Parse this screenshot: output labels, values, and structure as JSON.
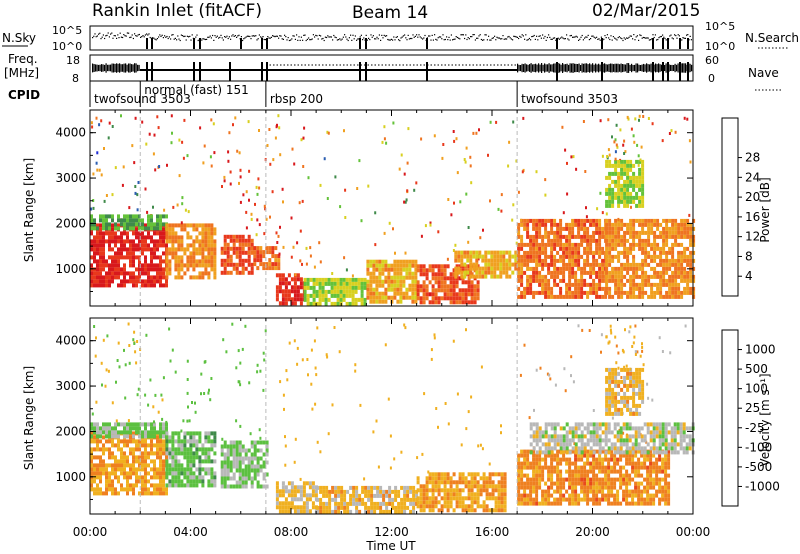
{
  "header": {
    "station": "Rankin Inlet (fitACF)",
    "beam": "Beam 14",
    "date": "02/Mar/2015"
  },
  "status_panel": {
    "nsky_label": "N.Sky",
    "nsky_ticks": [
      "10^5",
      "10^0"
    ],
    "nsearch_label": "N.Search",
    "nsearch_ticks": [
      "10^5",
      "10^0"
    ],
    "freq_label": "Freq.",
    "freq_unit": "[MHz]",
    "freq_ticks": [
      "18",
      "8"
    ],
    "nave_label": "Nave",
    "nave_ticks": [
      "60",
      "0"
    ],
    "cpid_label": "CPID",
    "cpid_segments": [
      {
        "label": "twofsound 3503",
        "start": 0,
        "end": 2
      },
      {
        "label": "normal (fast) 151",
        "start": 2,
        "end": 7
      },
      {
        "label": "rbsp 200",
        "start": 7,
        "end": 17
      },
      {
        "label": "twofsound 3503",
        "start": 17,
        "end": 24
      }
    ]
  },
  "time_axis": {
    "xlabel": "Time UT",
    "tick_labels": [
      "00:00",
      "04:00",
      "08:00",
      "12:00",
      "16:00",
      "20:00",
      "00:00"
    ]
  },
  "power_colorbar": {
    "label": "Power [dB]",
    "ticks": [
      "4",
      "8",
      "12",
      "16",
      "20",
      "24",
      "28"
    ],
    "colors": [
      "#1c2bd6",
      "#2a5db0",
      "#3f8a4a",
      "#64c23a",
      "#d8d020",
      "#f0a020",
      "#ef7420",
      "#e8381c",
      "#d8181c"
    ]
  },
  "velocity_colorbar": {
    "label": "Velocity [m s⁻¹]",
    "ticks": [
      "1000",
      "500",
      "100",
      "25",
      "-25",
      "-100",
      "-500",
      "-1000"
    ],
    "colors": [
      "#2040c0",
      "#2a70b0",
      "#3f8a4a",
      "#5cc040",
      "#b8b8b8",
      "#f0b020",
      "#ef8020",
      "#e84a1c",
      "#d8181c"
    ]
  },
  "chart_data": [
    {
      "type": "heatmap",
      "title": "Power",
      "xlabel": "Time UT",
      "ylabel": "Slant Range [km]",
      "xlim": [
        0,
        24
      ],
      "ylim": [
        180,
        4500
      ],
      "yticks": [
        1000,
        2000,
        3000,
        4000
      ],
      "colorbar_label": "Power [dB]",
      "colorbar_range": [
        0,
        30
      ],
      "patches": [
        {
          "t0": 0.0,
          "t1": 3.0,
          "r0": 600,
          "r1": 2000,
          "value": 27
        },
        {
          "t0": 0.0,
          "t1": 3.0,
          "r0": 1850,
          "r1": 2200,
          "value": 10
        },
        {
          "t0": 3.0,
          "t1": 5.0,
          "r0": 800,
          "r1": 2000,
          "value": 20
        },
        {
          "t0": 5.2,
          "t1": 6.5,
          "r0": 950,
          "r1": 1750,
          "value": 24
        },
        {
          "t0": 6.5,
          "t1": 7.5,
          "r0": 1000,
          "r1": 1500,
          "value": 22
        },
        {
          "t0": 7.4,
          "t1": 8.5,
          "r0": 200,
          "r1": 900,
          "value": 26
        },
        {
          "t0": 8.5,
          "t1": 11.0,
          "r0": 200,
          "r1": 800,
          "value": 14
        },
        {
          "t0": 11.0,
          "t1": 13.0,
          "r0": 300,
          "r1": 1200,
          "value": 18
        },
        {
          "t0": 13.0,
          "t1": 15.5,
          "r0": 300,
          "r1": 1100,
          "value": 24
        },
        {
          "t0": 14.5,
          "t1": 17.0,
          "r0": 800,
          "r1": 1400,
          "value": 18
        },
        {
          "t0": 17.0,
          "t1": 20.5,
          "r0": 400,
          "r1": 2100,
          "value": 22
        },
        {
          "t0": 20.5,
          "t1": 24.0,
          "r0": 400,
          "r1": 2100,
          "value": 20
        },
        {
          "t0": 20.5,
          "t1": 22.0,
          "r0": 2400,
          "r1": 3400,
          "value": 14
        }
      ]
    },
    {
      "type": "heatmap",
      "title": "Velocity",
      "xlabel": "Time UT",
      "ylabel": "Slant Range [km]",
      "xlim": [
        0,
        24
      ],
      "ylim": [
        180,
        4500
      ],
      "yticks": [
        1000,
        2000,
        3000,
        4000
      ],
      "colorbar_label": "Velocity [m s⁻¹]",
      "colorbar_range": [
        -1000,
        1000
      ],
      "patches": [
        {
          "t0": 0.0,
          "t1": 3.0,
          "r0": 600,
          "r1": 2000,
          "value": -300
        },
        {
          "t0": 0.0,
          "t1": 3.0,
          "r0": 1850,
          "r1": 2200,
          "value": 150
        },
        {
          "t0": 3.0,
          "t1": 5.0,
          "r0": 800,
          "r1": 2000,
          "value": 200
        },
        {
          "t0": 5.2,
          "t1": 7.0,
          "r0": 800,
          "r1": 1800,
          "value": 120
        },
        {
          "t0": 7.4,
          "t1": 9.0,
          "r0": 200,
          "r1": 900,
          "value": -150
        },
        {
          "t0": 9.0,
          "t1": 13.0,
          "r0": 200,
          "r1": 800,
          "value": -200
        },
        {
          "t0": 13.0,
          "t1": 16.5,
          "r0": 300,
          "r1": 1100,
          "value": -300
        },
        {
          "t0": 17.0,
          "t1": 23.0,
          "r0": 400,
          "r1": 1600,
          "value": -400
        },
        {
          "t0": 17.5,
          "t1": 24.0,
          "r0": 1500,
          "r1": 2200,
          "value": 0
        },
        {
          "t0": 20.5,
          "t1": 22.0,
          "r0": 2400,
          "r1": 3400,
          "value": -200
        }
      ]
    }
  ]
}
